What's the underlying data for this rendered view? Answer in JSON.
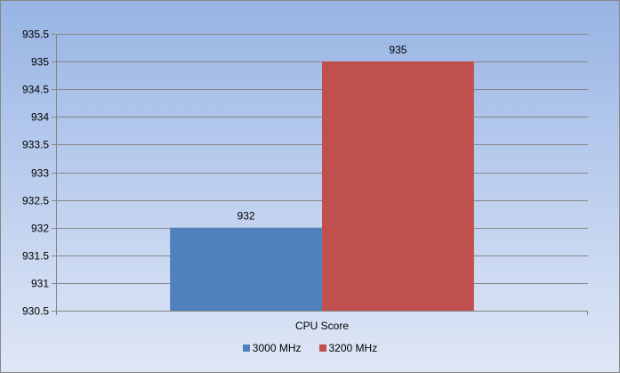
{
  "chart_data": {
    "type": "bar",
    "categories": [
      "CPU Score"
    ],
    "series": [
      {
        "name": "3000 MHz",
        "values": [
          932
        ],
        "color": "#4f81bd"
      },
      {
        "name": "3200 MHz",
        "values": [
          935
        ],
        "color": "#c0504d"
      }
    ],
    "ylim": [
      930.5,
      935.5
    ],
    "yticks": [
      "930.5",
      "931",
      "931.5",
      "932",
      "932.5",
      "933",
      "933.5",
      "934",
      "934.5",
      "935",
      "935.5"
    ],
    "grid": true,
    "legend_position": "bottom"
  }
}
